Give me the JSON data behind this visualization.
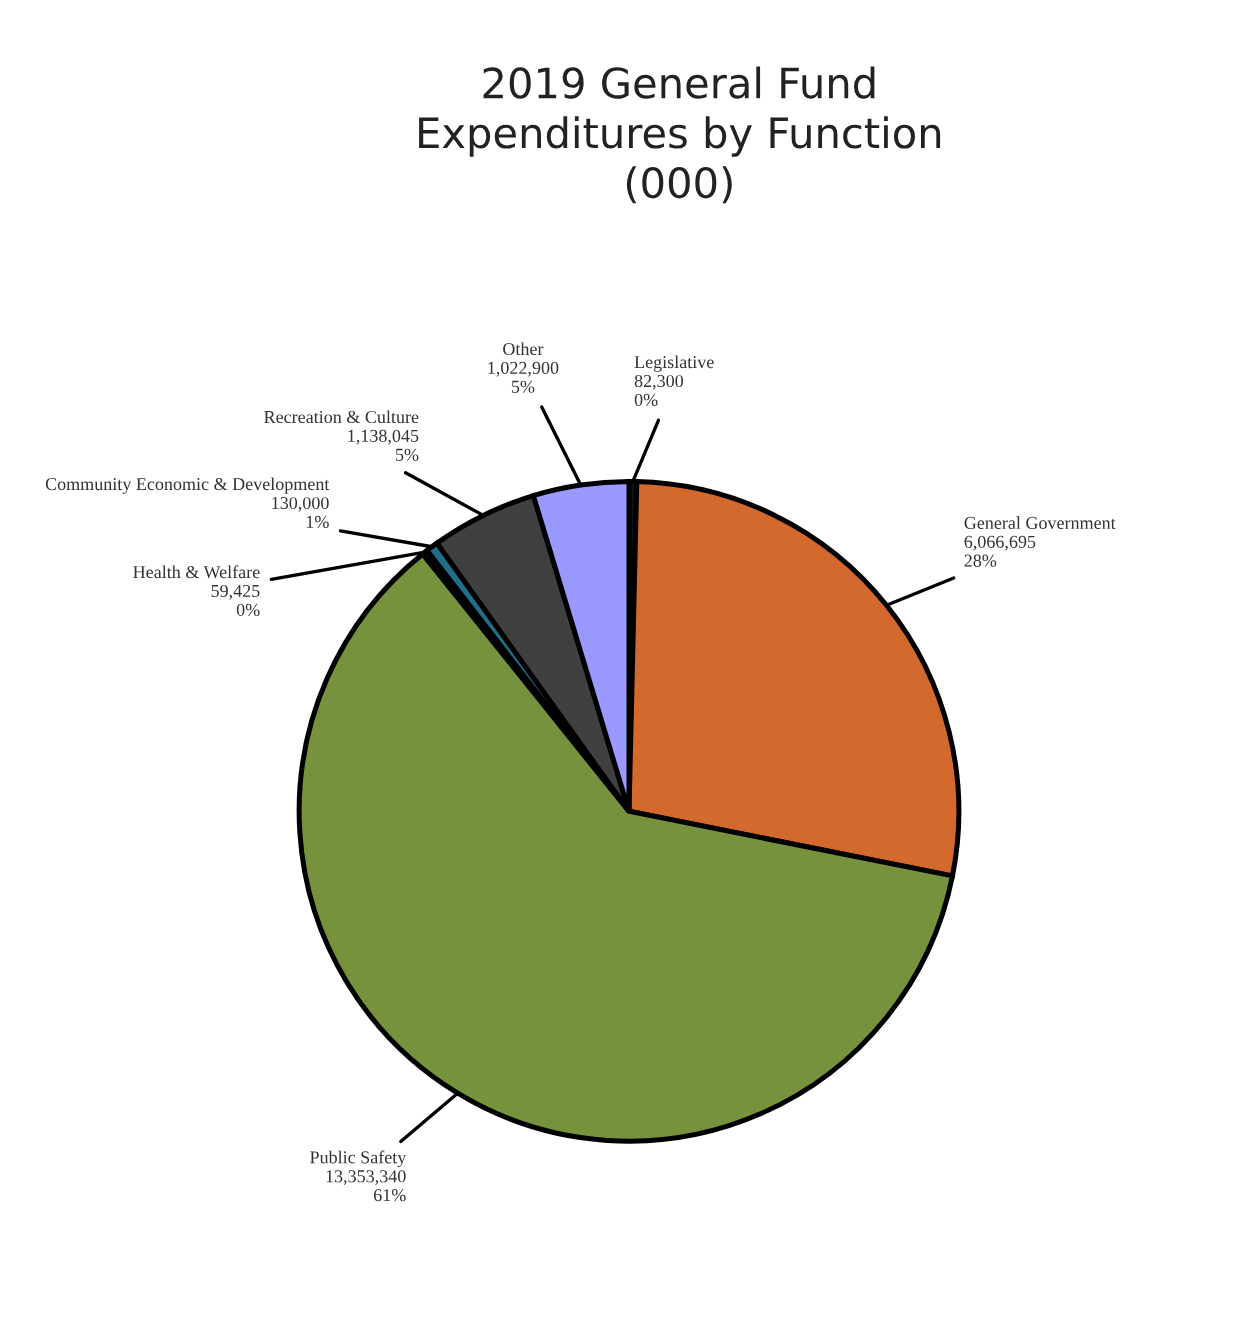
{
  "chart_data": {
    "type": "pie",
    "title": "2019 General Fund\nExpenditures by Function\n(000)",
    "categories": [
      "Legislative",
      "General Government",
      "Public Safety",
      "Health & Welfare",
      "Community Economic & Development",
      "Recreation & Culture",
      "Other"
    ],
    "values": [
      82300,
      6066695,
      13353340,
      59425,
      130000,
      1138045,
      1022900
    ],
    "value_labels": [
      "82,300\n0%",
      "6,066,695\n28%",
      "13,353,340\n61%",
      "59,425\n0%",
      "130,000\n1%",
      "1,138,045\n5%",
      "1,022,900\n5%"
    ],
    "colors": [
      "#111111",
      "#d4692e",
      "#76923c",
      "#1a1a1a",
      "#1f6f8b",
      "#404040",
      "#9999ff"
    ],
    "legend": false
  }
}
